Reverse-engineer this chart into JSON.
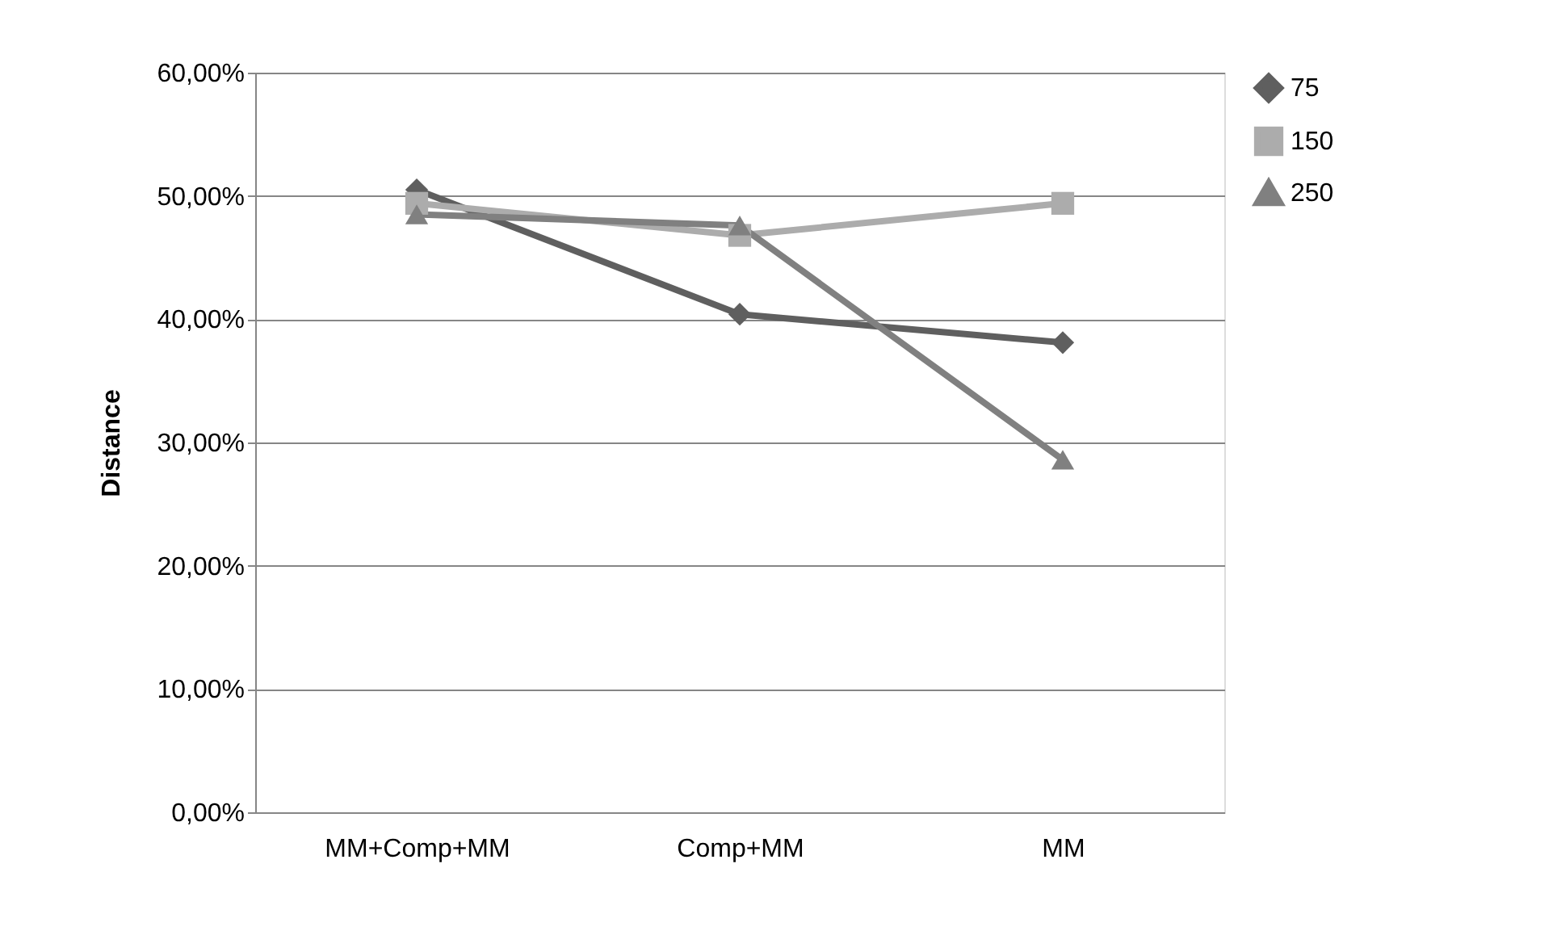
{
  "chart_data": {
    "type": "line",
    "ylabel": "Distance",
    "categories": [
      "MM+Comp+MM",
      "Comp+MM",
      "MM"
    ],
    "series": [
      {
        "name": "75",
        "color": "#5f5f5f",
        "marker": "diamond",
        "values": [
          50.5,
          40.4,
          38.1
        ]
      },
      {
        "name": "150",
        "color": "#acacac",
        "marker": "square",
        "values": [
          49.4,
          46.8,
          49.4
        ]
      },
      {
        "name": "250",
        "color": "#808080",
        "marker": "triangle",
        "values": [
          48.5,
          47.6,
          28.6
        ]
      }
    ],
    "ylim": [
      0,
      60
    ],
    "yticks": [
      {
        "value": 0,
        "label": "0,00%"
      },
      {
        "value": 10,
        "label": "10,00%"
      },
      {
        "value": 20,
        "label": "20,00%"
      },
      {
        "value": 30,
        "label": "30,00%"
      },
      {
        "value": 40,
        "label": "40,00%"
      },
      {
        "value": 50,
        "label": "50,00%"
      },
      {
        "value": 60,
        "label": "60,00%"
      }
    ],
    "grid": "y",
    "legend": "right",
    "line_style": "solid"
  }
}
